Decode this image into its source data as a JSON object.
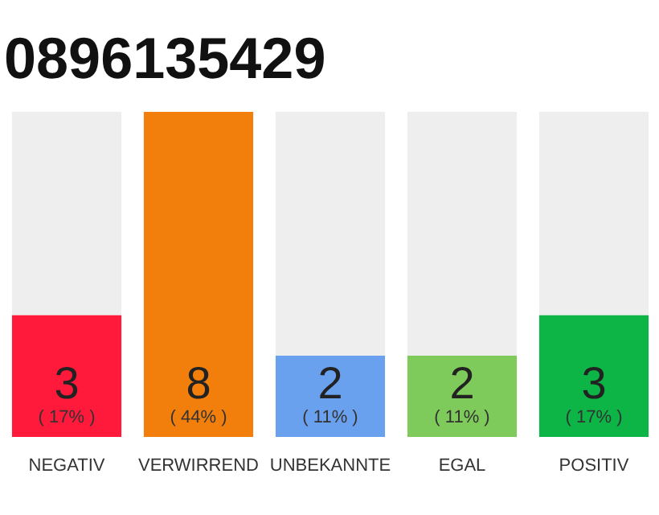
{
  "chart_data": {
    "type": "bar",
    "title": "0896135429",
    "categories": [
      "NEGATIV",
      "VERWIRREND",
      "UNBEKANNTE",
      "EGAL",
      "POSITIV"
    ],
    "stacked": true,
    "grid": false,
    "tick_labels": "x",
    "series": [
      {
        "colors": [
          "#ff1a3c",
          "#f27e0c",
          "#6aa1ef",
          "#7ecb5b",
          "#0db446"
        ],
        "values": [
          3,
          8,
          2,
          2,
          3
        ],
        "value_labels": [
          "3",
          "8",
          "2",
          "2",
          "3"
        ]
      },
      {
        "color": "#eeeeee",
        "values": [
          5,
          0,
          6,
          6,
          5
        ],
        "value_labels": [
          null,
          null,
          null,
          null,
          null
        ]
      }
    ],
    "annotations": [
      {
        "text": "( 17% )",
        "x": "NEGATIV",
        "y": 0
      },
      {
        "text": "( 44% )",
        "x": "VERWIRREND",
        "y": 0
      },
      {
        "text": "( 11% )",
        "x": "UNBEKANNTE",
        "y": 0
      },
      {
        "text": "( 11% )",
        "x": "EGAL",
        "y": 0
      },
      {
        "text": "( 17% )",
        "x": "POSITIV",
        "y": 0
      }
    ]
  }
}
